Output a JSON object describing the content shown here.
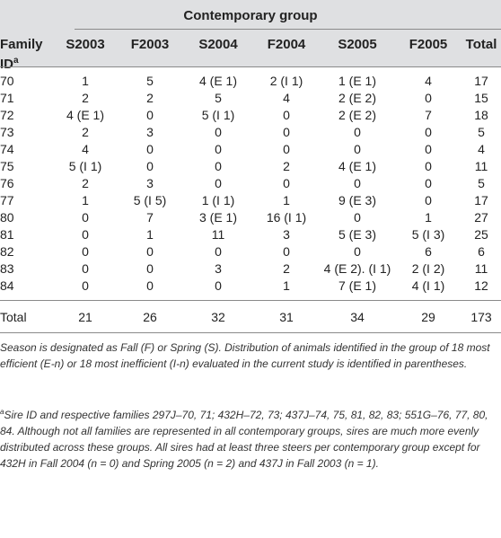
{
  "group_title": "Contemporary group",
  "columns": {
    "family": "Family ID",
    "family_sup": "a",
    "seasons": [
      "S2003",
      "F2003",
      "S2004",
      "F2004",
      "S2005",
      "F2005",
      "Total"
    ]
  },
  "rows": [
    {
      "id": "70",
      "values": [
        "1",
        "5",
        "4 (E 1)",
        "2 (I 1)",
        "1 (E 1)",
        "4",
        "17"
      ]
    },
    {
      "id": "71",
      "values": [
        "2",
        "2",
        "5",
        "4",
        "2 (E 2)",
        "0",
        "15"
      ]
    },
    {
      "id": "72",
      "values": [
        "4 (E 1)",
        "0",
        "5 (I 1)",
        "0",
        "2 (E 2)",
        "7",
        "18"
      ]
    },
    {
      "id": "73",
      "values": [
        "2",
        "3",
        "0",
        "0",
        "0",
        "0",
        "5"
      ]
    },
    {
      "id": "74",
      "values": [
        "4",
        "0",
        "0",
        "0",
        "0",
        "0",
        "4"
      ]
    },
    {
      "id": "75",
      "values": [
        "5 (I 1)",
        "0",
        "0",
        "2",
        "4 (E 1)",
        "0",
        "11"
      ]
    },
    {
      "id": "76",
      "values": [
        "2",
        "3",
        "0",
        "0",
        "0",
        "0",
        "5"
      ]
    },
    {
      "id": "77",
      "values": [
        "1",
        "5 (I 5)",
        "1 (I 1)",
        "1",
        "9 (E 3)",
        "0",
        "17"
      ]
    },
    {
      "id": "80",
      "values": [
        "0",
        "7",
        "3 (E 1)",
        "16 (I 1)",
        "0",
        "1",
        "27"
      ]
    },
    {
      "id": "81",
      "values": [
        "0",
        "1",
        "11",
        "3",
        "5 (E 3)",
        "5 (I 3)",
        "25"
      ]
    },
    {
      "id": "82",
      "values": [
        "0",
        "0",
        "0",
        "0",
        "0",
        "6",
        "6"
      ]
    },
    {
      "id": "83",
      "values": [
        "0",
        "0",
        "3",
        "2",
        "4 (E 2). (I 1)",
        "2 (I 2)",
        "11"
      ]
    },
    {
      "id": "84",
      "values": [
        "0",
        "0",
        "0",
        "1",
        "7 (E 1)",
        "4 (I 1)",
        "12"
      ]
    }
  ],
  "total_row": {
    "id": "Total",
    "values": [
      "21",
      "26",
      "32",
      "31",
      "34",
      "29",
      "173"
    ]
  },
  "notes": {
    "note1": "Season is designated as Fall (F) or Spring (S). Distribution of animals identified in the group of 18 most efficient (E-n) or 18 most inefficient (I-n) evaluated in the current study is identified in parentheses.",
    "note2_sup": "a",
    "note2": "Sire ID and respective families 297J–70, 71; 432H–72, 73; 437J–74, 75, 81, 82, 83; 551G–76, 77, 80, 84. Although not all families are represented in all contemporary groups, sires are much more evenly distributed across these groups. All sires had at least three steers per contemporary group except for 432H in Fall 2004 (n = 0) and Spring 2005 (n = 2) and 437J in Fall 2003 (n = 1)."
  }
}
